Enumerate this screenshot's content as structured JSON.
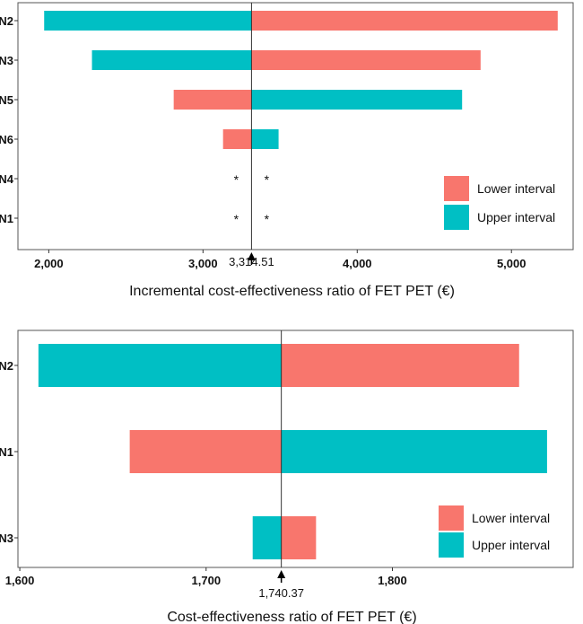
{
  "colors": {
    "lower": "#F8766D",
    "upper": "#00BFC4"
  },
  "chart_data": [
    {
      "type": "bar",
      "orientation": "horizontal-tornado",
      "xlabel": "Incremental cost-effectiveness ratio of FET PET (€)",
      "baseline": 3314.51,
      "baseline_label": "3,314.51",
      "xlim": [
        1800,
        5400
      ],
      "xticks": [
        2000,
        3000,
        4000,
        5000
      ],
      "xtick_labels": [
        "2,000",
        "3,000",
        "4,000",
        "5,000"
      ],
      "categories": [
        "N2",
        "N3",
        "N5",
        "N6",
        "N4",
        "N1"
      ],
      "series": [
        {
          "name": "Lower interval",
          "values": [
            5300,
            4800,
            2810,
            3130,
            null,
            null
          ]
        },
        {
          "name": "Upper interval",
          "values": [
            1970,
            2280,
            4680,
            3490,
            null,
            null
          ]
        }
      ],
      "annotations": [
        {
          "category": "N4",
          "side": "left",
          "text": "*"
        },
        {
          "category": "N4",
          "side": "right",
          "text": "*"
        },
        {
          "category": "N1",
          "side": "left",
          "text": "*"
        },
        {
          "category": "N1",
          "side": "right",
          "text": "*"
        }
      ],
      "legend": {
        "position": "bottom-right",
        "entries": [
          "Lower interval",
          "Upper interval"
        ]
      }
    },
    {
      "type": "bar",
      "orientation": "horizontal-tornado",
      "xlabel": "Cost-effectiveness ratio of FET PET (€)",
      "baseline": 1740.37,
      "baseline_label": "1,740.37",
      "xlim": [
        1599,
        1897
      ],
      "xticks": [
        1600,
        1700,
        1800
      ],
      "xtick_labels": [
        "1,600",
        "1,700",
        "1,800"
      ],
      "categories": [
        "N2",
        "N1",
        "N3"
      ],
      "series": [
        {
          "name": "Lower interval",
          "values": [
            1868,
            1659,
            1759
          ]
        },
        {
          "name": "Upper interval",
          "values": [
            1610,
            1883,
            1725
          ]
        }
      ],
      "annotations": [],
      "legend": {
        "position": "bottom-right",
        "entries": [
          "Lower interval",
          "Upper interval"
        ]
      }
    }
  ]
}
